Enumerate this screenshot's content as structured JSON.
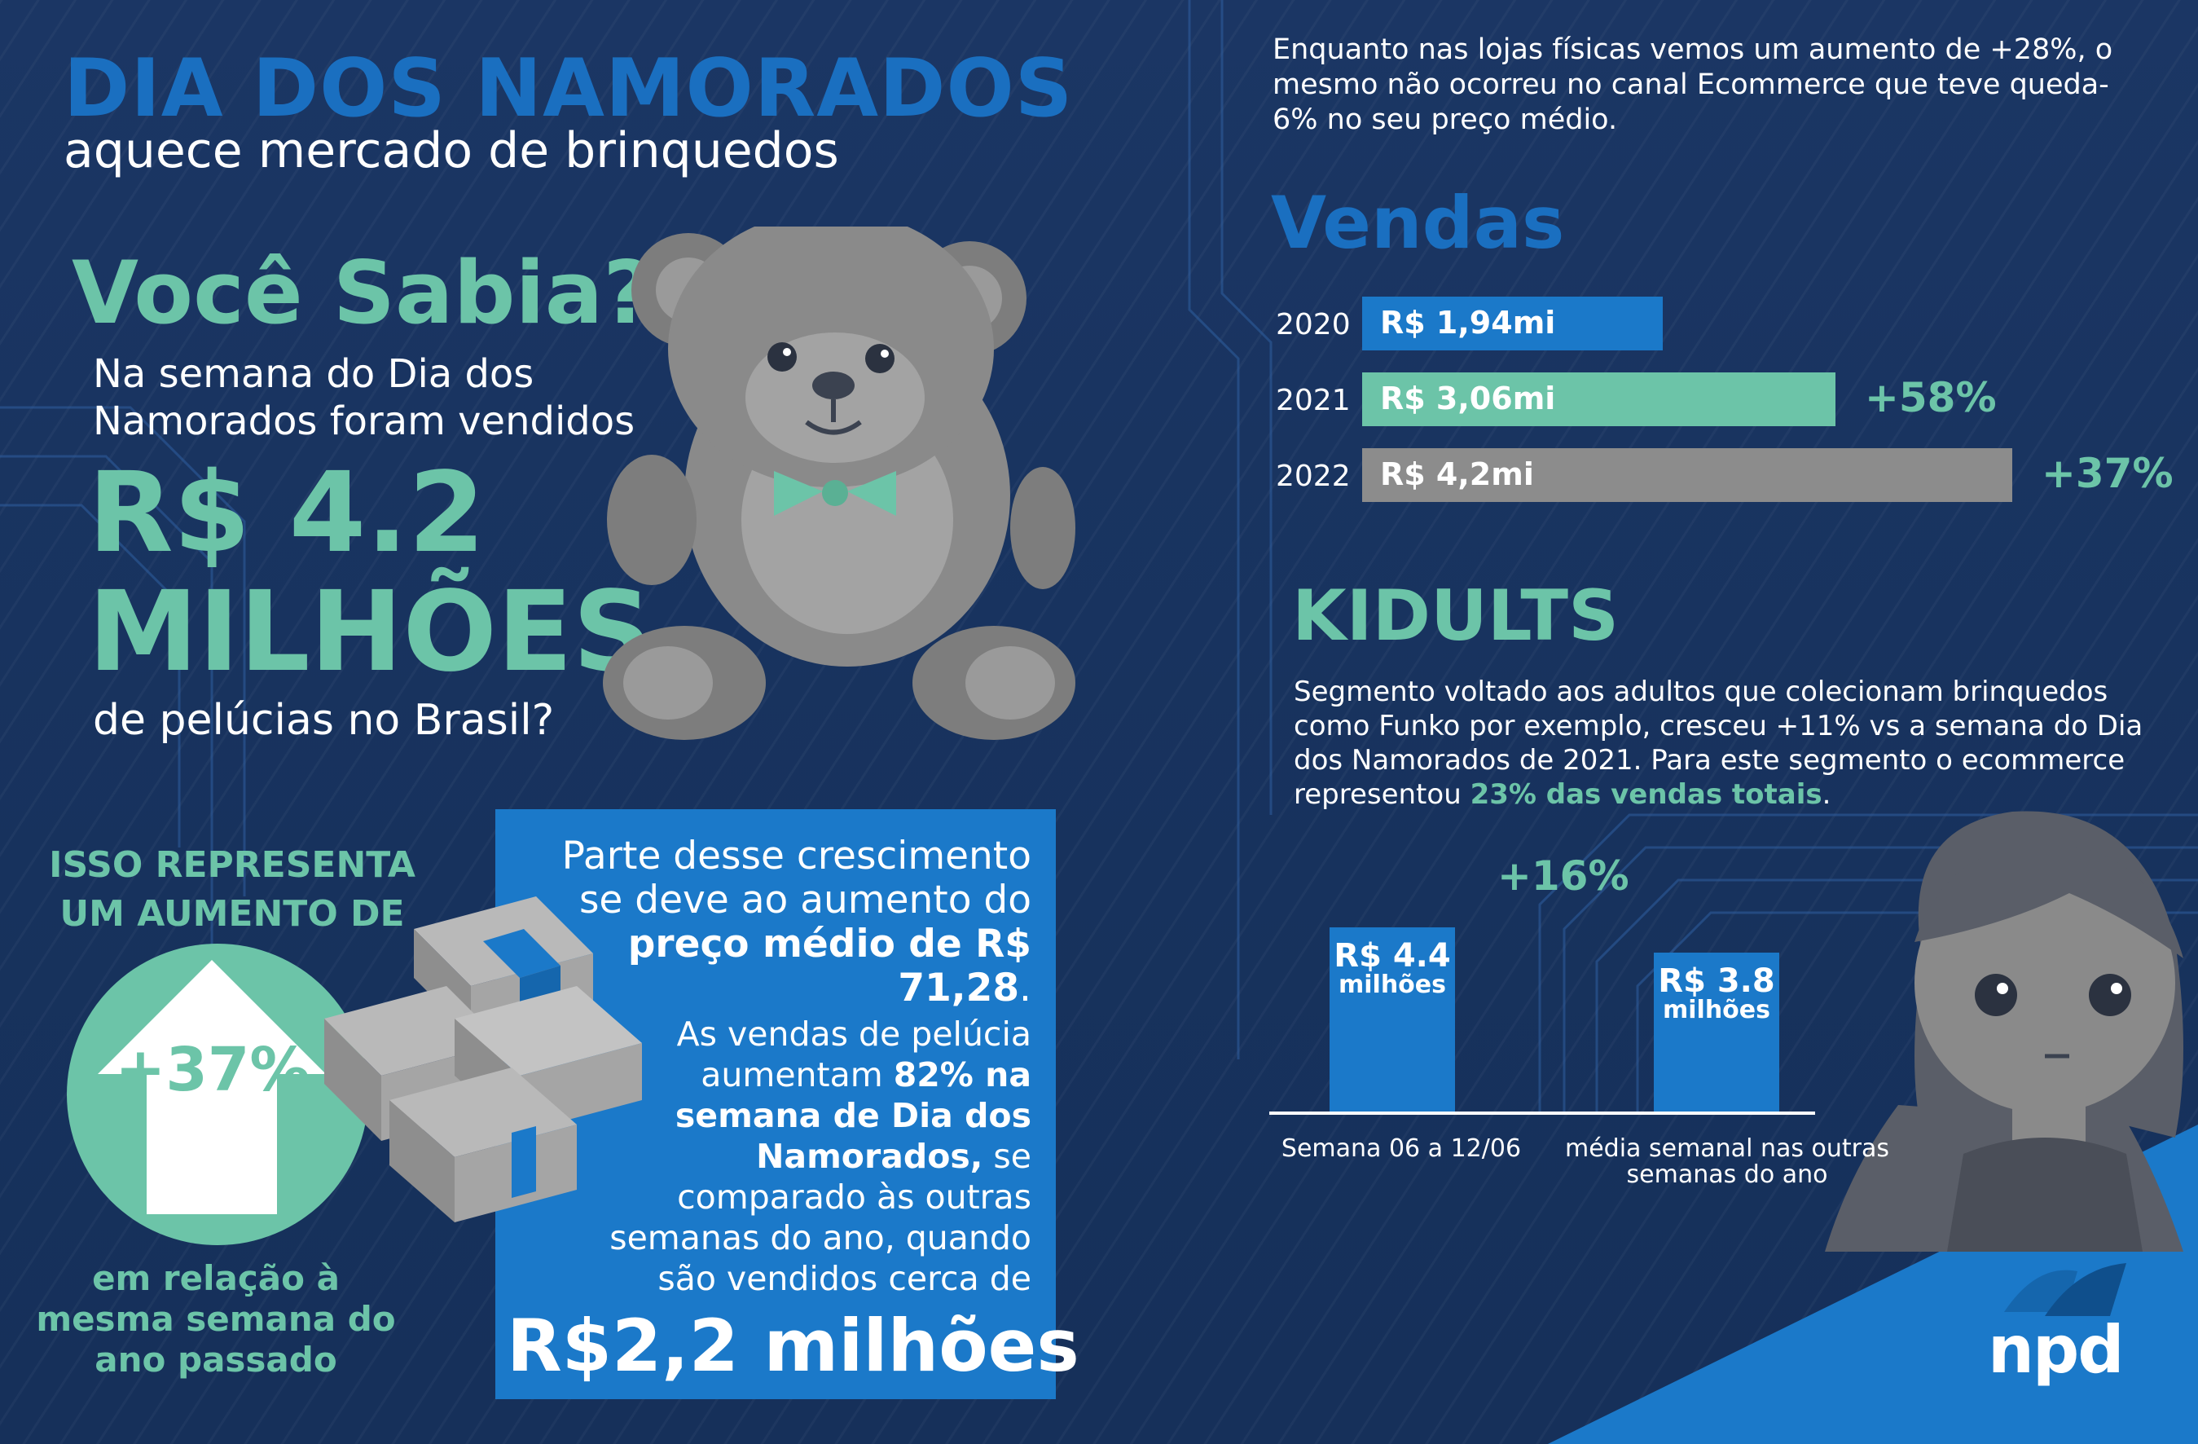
{
  "header": {
    "title": "DIA DOS NAMORADOS",
    "subtitle": "aquece mercado de brinquedos"
  },
  "left": {
    "voce_sabia": "Você Sabia?",
    "intro": "Na semana do Dia dos Namorados foram vendidos",
    "big_line1": "R$ 4.2",
    "big_line2": "MILHÕES",
    "tail": "de pelúcias no Brasil?",
    "isso": "ISSO REPRESENTA UM AUMENTO DE",
    "percent": "+37%",
    "em_relacao": "em relação à mesma semana do ano passado"
  },
  "bluebox": {
    "p1_text": "Parte desse crescimento se deve ao aumento do",
    "p1_bold": "preço médio de R$ 71,28",
    "p1_end": ".",
    "p2_text1": "As vendas de pelúcia aumentam",
    "p2_bold": "82% na semana de Dia dos Namorados,",
    "p2_text2": "se comparado às outras semanas do ano, quando são vendidos cerca de",
    "big": "R$2,2 milhões"
  },
  "right": {
    "intro": "Enquanto nas lojas físicas vemos um aumento de +28%, o mesmo não ocorreu no canal Ecommerce que teve queda-6% no seu preço médio.",
    "vendas_title": "Vendas",
    "kidults_title": "KIDULTS",
    "kidults_desc": "Segmento voltado aos adultos que colecionam brinquedos como Funko por exemplo, cresceu +11% vs a semana do Dia dos Namorados de 2021. Para este segmento o ecommerce representou",
    "kidults_highlight": "23% das vendas totais",
    "kidults_end": "."
  },
  "vendas_chart": {
    "type": "bar",
    "categories": [
      "2020",
      "2021",
      "2022"
    ],
    "values": [
      1.94,
      3.06,
      4.2
    ],
    "value_labels": [
      "R$ 1,94mi",
      "R$ 3,06mi",
      "R$ 4,2mi"
    ],
    "colors": [
      "#1b79c9",
      "#6cc4a8",
      "#8c8c8c"
    ],
    "growth_labels": [
      "",
      "+58%",
      "+37%"
    ]
  },
  "kidults_chart": {
    "type": "bar",
    "categories": [
      "Semana 06 a 12/06",
      "média semanal nas outras semanas do ano"
    ],
    "values": [
      4.4,
      3.8
    ],
    "value_labels": [
      "R$ 4.4",
      "R$ 3.8"
    ],
    "unit_label": "milhões",
    "growth": "+16%",
    "color": "#1b79c9"
  },
  "chart_data": [
    {
      "type": "bar",
      "categories": [
        "2020",
        "2021",
        "2022"
      ],
      "values": [
        1.94,
        3.06,
        4.2
      ],
      "title": "Vendas"
    },
    {
      "type": "bar",
      "categories": [
        "Semana 06 a 12/06",
        "média semanal nas outras semanas do ano"
      ],
      "values": [
        4.4,
        3.8
      ]
    }
  ],
  "brand": {
    "logo_text": "npd"
  },
  "colors": {
    "background": "#16305a",
    "accent_blue": "#1a6fc0",
    "box_blue": "#1b79c9",
    "mint": "#6cc4a8",
    "gray": "#8c8c8c"
  }
}
